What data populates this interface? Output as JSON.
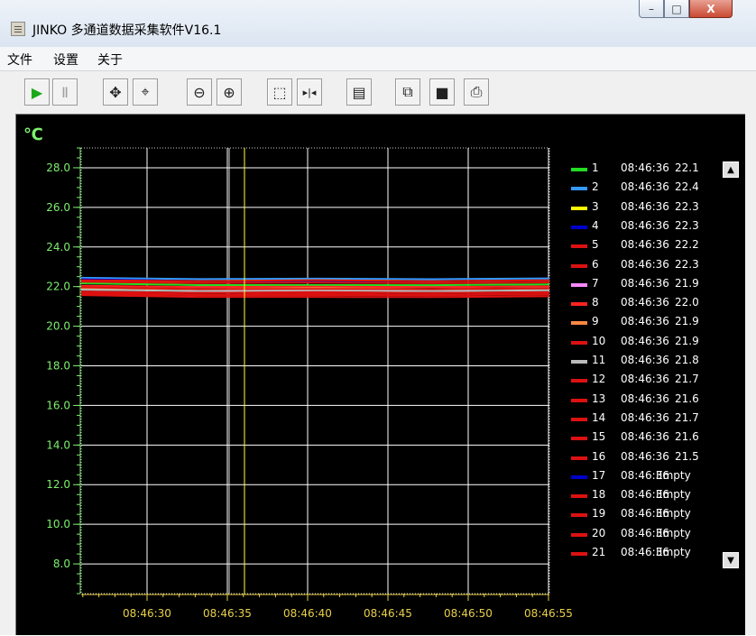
{
  "window": {
    "title": "JINKO 多通道数据采集软件V16.1",
    "buttons": {
      "minimize": "–",
      "maximize": "□",
      "close": "X"
    }
  },
  "menu": [
    "文件",
    "设置",
    "关于"
  ],
  "toolbar": [
    {
      "icon": "play-icon",
      "glyph": "▶",
      "enabled": true
    },
    {
      "icon": "pause-icon",
      "glyph": "Ⅱ",
      "enabled": false
    },
    {
      "icon": "move-icon",
      "glyph": "✥",
      "enabled": true
    },
    {
      "icon": "zoom-fit-icon",
      "glyph": "⌖",
      "enabled": true
    },
    {
      "icon": "zoom-out-icon",
      "glyph": "⊖",
      "enabled": true
    },
    {
      "icon": "zoom-in-icon",
      "glyph": "⊕",
      "enabled": true
    },
    {
      "icon": "select-rect-icon",
      "glyph": "⬚",
      "enabled": true
    },
    {
      "icon": "cursor-icon",
      "glyph": "▸|◂",
      "enabled": true
    },
    {
      "icon": "properties-icon",
      "glyph": "▤",
      "enabled": true
    },
    {
      "icon": "copy-icon",
      "glyph": "⧉",
      "enabled": true
    },
    {
      "icon": "save-icon",
      "glyph": "■",
      "enabled": true
    },
    {
      "icon": "print-icon",
      "glyph": "⎙",
      "enabled": true
    }
  ],
  "chart_data": {
    "type": "line",
    "ylabel": "℃",
    "ylim": [
      6.5,
      29
    ],
    "y_ticks": [
      "28.0",
      "26.0",
      "24.0",
      "22.0",
      "20.0",
      "18.0",
      "16.0",
      "14.0",
      "12.0",
      "10.0",
      "8.0"
    ],
    "x_ticks": [
      "08:46:30",
      "08:46:35",
      "08:46:40",
      "08:46:45",
      "08:46:50",
      "08:46:55"
    ],
    "cursor_time": "08:46:36",
    "grid": true,
    "colors": {
      "axis_text": "#7df06e",
      "x_tick_text": "#e8d04a",
      "grid": "#ffffff",
      "cursor": "#ffff40"
    },
    "series": [
      {
        "name": "1",
        "color": "#22dd22",
        "time": "08:46:36",
        "value": "22.1",
        "y": 22.1
      },
      {
        "name": "2",
        "color": "#3399ff",
        "time": "08:46:36",
        "value": "22.4",
        "y": 22.4
      },
      {
        "name": "3",
        "color": "#ffff00",
        "time": "08:46:36",
        "value": "22.3",
        "y": 22.3
      },
      {
        "name": "4",
        "color": "#0000cc",
        "time": "08:46:36",
        "value": "22.3",
        "y": 22.3
      },
      {
        "name": "5",
        "color": "#dd1111",
        "time": "08:46:36",
        "value": "22.2",
        "y": 22.2
      },
      {
        "name": "6",
        "color": "#dd1111",
        "time": "08:46:36",
        "value": "22.3",
        "y": 22.3
      },
      {
        "name": "7",
        "color": "#ff88ff",
        "time": "08:46:36",
        "value": "21.9",
        "y": 21.9
      },
      {
        "name": "8",
        "color": "#ff2222",
        "time": "08:46:36",
        "value": "22.0",
        "y": 22.0
      },
      {
        "name": "9",
        "color": "#ff8844",
        "time": "08:46:36",
        "value": "21.9",
        "y": 21.9
      },
      {
        "name": "10",
        "color": "#dd1111",
        "time": "08:46:36",
        "value": "21.9",
        "y": 21.9
      },
      {
        "name": "11",
        "color": "#bbbbbb",
        "time": "08:46:36",
        "value": "21.8",
        "y": 21.8
      },
      {
        "name": "12",
        "color": "#dd1111",
        "time": "08:46:36",
        "value": "21.7",
        "y": 21.7
      },
      {
        "name": "13",
        "color": "#dd1111",
        "time": "08:46:36",
        "value": "21.6",
        "y": 21.6
      },
      {
        "name": "14",
        "color": "#dd1111",
        "time": "08:46:36",
        "value": "21.7",
        "y": 21.7
      },
      {
        "name": "15",
        "color": "#dd1111",
        "time": "08:46:36",
        "value": "21.6",
        "y": 21.6
      },
      {
        "name": "16",
        "color": "#dd1111",
        "time": "08:46:36",
        "value": "21.5",
        "y": 21.5
      },
      {
        "name": "17",
        "color": "#0000cc",
        "time": "08:46:36",
        "value": "Empty",
        "y": null
      },
      {
        "name": "18",
        "color": "#dd1111",
        "time": "08:46:36",
        "value": "Empty",
        "y": null
      },
      {
        "name": "19",
        "color": "#dd1111",
        "time": "08:46:36",
        "value": "Empty",
        "y": null
      },
      {
        "name": "20",
        "color": "#dd1111",
        "time": "08:46:36",
        "value": "Empty",
        "y": null
      },
      {
        "name": "21",
        "color": "#dd1111",
        "time": "08:46:36",
        "value": "Empty",
        "y": null
      }
    ]
  }
}
